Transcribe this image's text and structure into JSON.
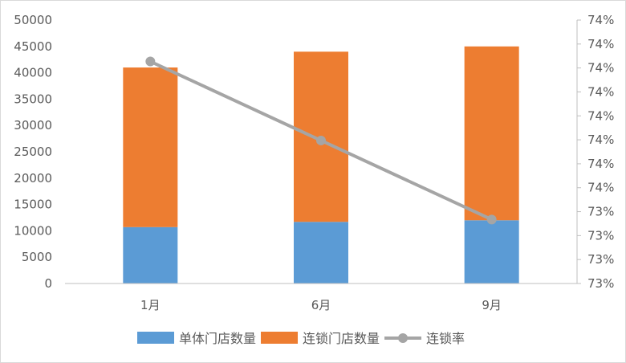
{
  "chart_data": {
    "type": "bar",
    "stacked": true,
    "categories": [
      "1月",
      "6月",
      "9月"
    ],
    "series": [
      {
        "name": "单体门店数量",
        "type": "bar",
        "axis": "left",
        "color": "#5b9bd5",
        "values": [
          10700,
          11700,
          12000
        ]
      },
      {
        "name": "连锁门店数量",
        "type": "bar",
        "axis": "left",
        "color": "#ed7d31",
        "values": [
          30300,
          32300,
          33000
        ]
      },
      {
        "name": "连锁率",
        "type": "line",
        "axis": "right",
        "color": "#a5a5a5",
        "values": [
          0.7384,
          0.7363,
          0.7342
        ]
      }
    ],
    "ylim": [
      0,
      50000
    ],
    "yticks": [
      "0",
      "5000",
      "10000",
      "15000",
      "20000",
      "25000",
      "30000",
      "35000",
      "40000",
      "45000",
      "50000"
    ],
    "y2lim": [
      0.7325,
      0.7395
    ],
    "y2ticks": [
      "73%",
      "73%",
      "73%",
      "73%",
      "74%",
      "74%",
      "74%",
      "74%",
      "74%",
      "74%",
      "74%",
      "74%"
    ],
    "grid": false,
    "legend": "bottom"
  }
}
